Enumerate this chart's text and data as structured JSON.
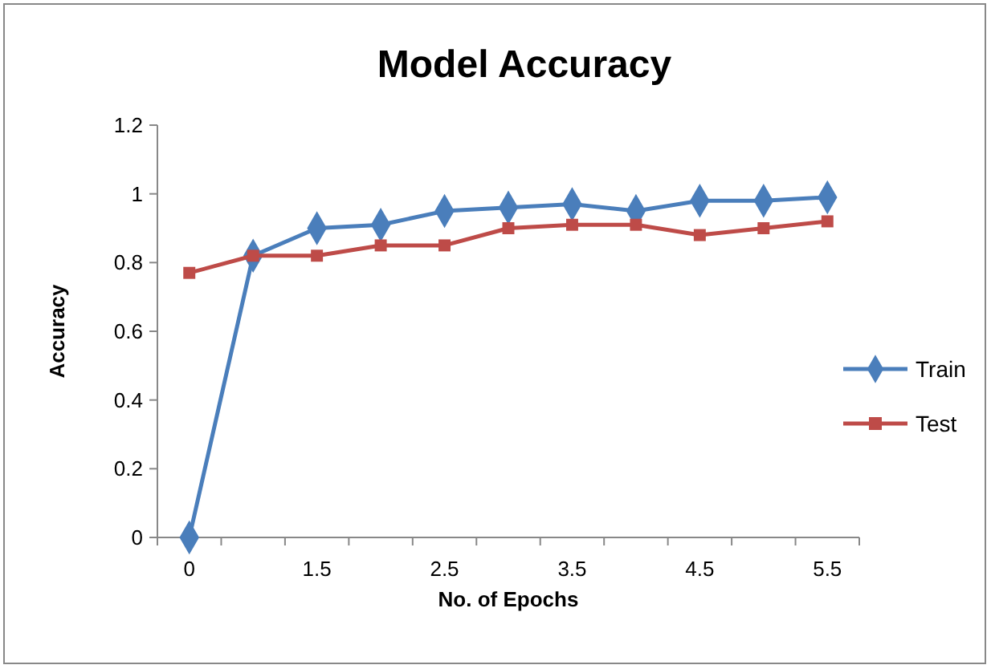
{
  "chart_data": {
    "type": "line",
    "title": "Model Accuracy",
    "xlabel": "No. of Epochs",
    "ylabel": "Accuracy",
    "categories": [
      "0",
      null,
      "1.5",
      null,
      "2.5",
      null,
      "3.5",
      null,
      "4.5",
      null,
      "5.5"
    ],
    "series": [
      {
        "name": "Train",
        "color": "#4a7ebb",
        "marker": "diamond",
        "values": [
          0,
          0.82,
          0.9,
          0.91,
          0.95,
          0.96,
          0.97,
          0.95,
          0.98,
          0.98,
          0.99
        ]
      },
      {
        "name": "Test",
        "color": "#be4b48",
        "marker": "square",
        "values": [
          0.77,
          0.82,
          0.82,
          0.85,
          0.85,
          0.9,
          0.91,
          0.91,
          0.88,
          0.9,
          0.92
        ]
      }
    ],
    "ylim": [
      0,
      1.2
    ],
    "yticks": [
      0,
      0.2,
      0.4,
      0.6,
      0.8,
      1,
      1.2
    ],
    "grid": false,
    "legend": "right",
    "line_style": "solid"
  }
}
